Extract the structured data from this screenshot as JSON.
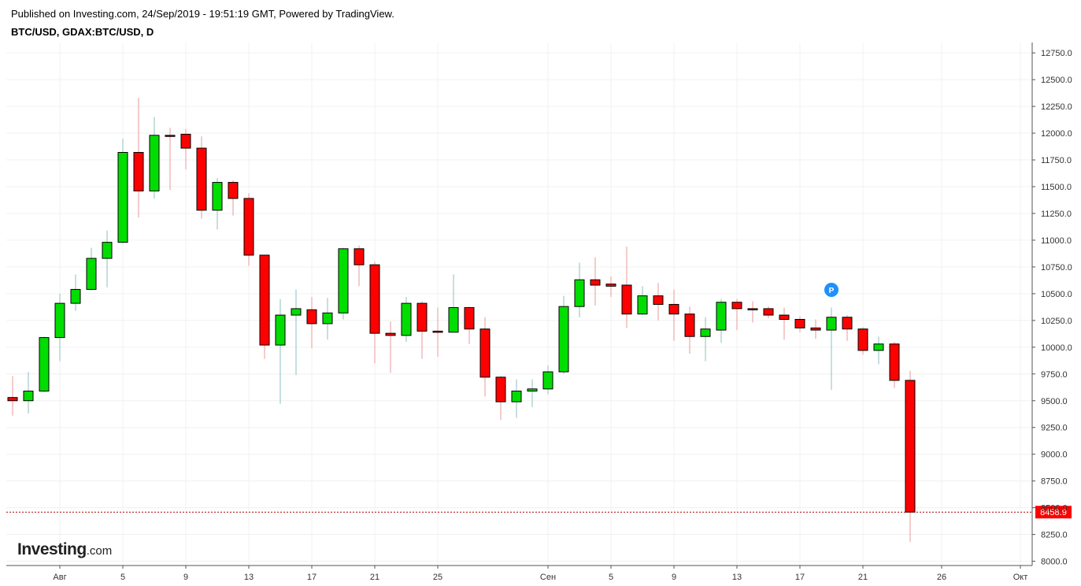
{
  "header": {
    "published": "Published on Investing.com, 24/Sep/2019 - 19:51:19 GMT, Powered by TradingView.",
    "symbol": "BTC/USD, GDAX:BTC/USD, D"
  },
  "logo": {
    "brand": "Investing",
    "suffix": ".com"
  },
  "colors": {
    "up": "#00dd00",
    "down": "#ff0000",
    "grid": "#f0f0f0",
    "last_line": "#b00000"
  },
  "marker": {
    "label": "P",
    "date": "2019-09-19",
    "color": "#1e90ff"
  },
  "chart_data": {
    "type": "candlestick",
    "title": "BTC/USD, GDAX:BTC/USD, D",
    "y_axis": {
      "side": "right",
      "ylim": [
        7960,
        12810
      ],
      "ticks": [
        "8000.0",
        "8250.0",
        "8500.0",
        "8750.0",
        "9000.0",
        "9250.0",
        "9500.0",
        "9750.0",
        "10000.0",
        "10250.0",
        "10500.0",
        "10750.0",
        "11000.0",
        "11250.0",
        "11500.0",
        "11750.0",
        "12000.0",
        "12250.0",
        "12500.0",
        "12750.0"
      ]
    },
    "x_axis": {
      "labels": [
        {
          "date": "2019-08-01",
          "label": "Авг"
        },
        {
          "date": "2019-08-05",
          "label": "5"
        },
        {
          "date": "2019-08-09",
          "label": "9"
        },
        {
          "date": "2019-08-13",
          "label": "13"
        },
        {
          "date": "2019-08-17",
          "label": "17"
        },
        {
          "date": "2019-08-21",
          "label": "21"
        },
        {
          "date": "2019-08-25",
          "label": "25"
        },
        {
          "date": "2019-09-01",
          "label": "Сен"
        },
        {
          "date": "2019-09-05",
          "label": "5"
        },
        {
          "date": "2019-09-09",
          "label": "9"
        },
        {
          "date": "2019-09-13",
          "label": "13"
        },
        {
          "date": "2019-09-17",
          "label": "17"
        },
        {
          "date": "2019-09-21",
          "label": "21"
        },
        {
          "date": "2019-09-26",
          "label": "26"
        },
        {
          "date": "2019-10-01",
          "label": "Окт"
        }
      ]
    },
    "last_price": "8458.9",
    "candles": [
      {
        "d": "2019-07-29",
        "o": 9530,
        "h": 9730,
        "l": 9360,
        "c": 9500
      },
      {
        "d": "2019-07-30",
        "o": 9500,
        "h": 9770,
        "l": 9380,
        "c": 9590
      },
      {
        "d": "2019-07-31",
        "o": 9590,
        "h": 10100,
        "l": 9580,
        "c": 10090
      },
      {
        "d": "2019-08-01",
        "o": 10090,
        "h": 10500,
        "l": 9870,
        "c": 10410
      },
      {
        "d": "2019-08-02",
        "o": 10410,
        "h": 10680,
        "l": 10340,
        "c": 10540
      },
      {
        "d": "2019-08-03",
        "o": 10540,
        "h": 10930,
        "l": 10530,
        "c": 10830
      },
      {
        "d": "2019-08-04",
        "o": 10830,
        "h": 11090,
        "l": 10560,
        "c": 10980
      },
      {
        "d": "2019-08-05",
        "o": 10980,
        "h": 11950,
        "l": 10970,
        "c": 11820
      },
      {
        "d": "2019-08-06",
        "o": 11820,
        "h": 12330,
        "l": 11210,
        "c": 11460
      },
      {
        "d": "2019-08-07",
        "o": 11460,
        "h": 12150,
        "l": 11390,
        "c": 11980
      },
      {
        "d": "2019-08-08",
        "o": 11980,
        "h": 12050,
        "l": 11470,
        "c": 11970
      },
      {
        "d": "2019-08-09",
        "o": 11990,
        "h": 12040,
        "l": 11660,
        "c": 11860
      },
      {
        "d": "2019-08-10",
        "o": 11860,
        "h": 11970,
        "l": 11200,
        "c": 11280
      },
      {
        "d": "2019-08-11",
        "o": 11280,
        "h": 11580,
        "l": 11100,
        "c": 11540
      },
      {
        "d": "2019-08-12",
        "o": 11540,
        "h": 11560,
        "l": 11230,
        "c": 11390
      },
      {
        "d": "2019-08-13",
        "o": 11390,
        "h": 11440,
        "l": 10760,
        "c": 10860
      },
      {
        "d": "2019-08-14",
        "o": 10860,
        "h": 10860,
        "l": 9890,
        "c": 10020
      },
      {
        "d": "2019-08-15",
        "o": 10020,
        "h": 10450,
        "l": 9470,
        "c": 10300
      },
      {
        "d": "2019-08-16",
        "o": 10300,
        "h": 10540,
        "l": 9740,
        "c": 10360
      },
      {
        "d": "2019-08-17",
        "o": 10350,
        "h": 10470,
        "l": 9990,
        "c": 10220
      },
      {
        "d": "2019-08-18",
        "o": 10220,
        "h": 10460,
        "l": 10070,
        "c": 10320
      },
      {
        "d": "2019-08-19",
        "o": 10320,
        "h": 10930,
        "l": 10260,
        "c": 10920
      },
      {
        "d": "2019-08-20",
        "o": 10920,
        "h": 10950,
        "l": 10570,
        "c": 10770
      },
      {
        "d": "2019-08-21",
        "o": 10770,
        "h": 10800,
        "l": 9850,
        "c": 10130
      },
      {
        "d": "2019-08-22",
        "o": 10130,
        "h": 10240,
        "l": 9760,
        "c": 10110
      },
      {
        "d": "2019-08-23",
        "o": 10110,
        "h": 10470,
        "l": 10050,
        "c": 10410
      },
      {
        "d": "2019-08-24",
        "o": 10410,
        "h": 10430,
        "l": 9890,
        "c": 10150
      },
      {
        "d": "2019-08-25",
        "o": 10150,
        "h": 10370,
        "l": 9910,
        "c": 10140
      },
      {
        "d": "2019-08-26",
        "o": 10140,
        "h": 10680,
        "l": 10140,
        "c": 10370
      },
      {
        "d": "2019-08-27",
        "o": 10370,
        "h": 10380,
        "l": 10030,
        "c": 10170
      },
      {
        "d": "2019-08-28",
        "o": 10170,
        "h": 10280,
        "l": 9540,
        "c": 9720
      },
      {
        "d": "2019-08-29",
        "o": 9720,
        "h": 9730,
        "l": 9320,
        "c": 9490
      },
      {
        "d": "2019-08-30",
        "o": 9490,
        "h": 9700,
        "l": 9340,
        "c": 9590
      },
      {
        "d": "2019-08-31",
        "o": 9590,
        "h": 9700,
        "l": 9440,
        "c": 9610
      },
      {
        "d": "2019-09-01",
        "o": 9610,
        "h": 9830,
        "l": 9560,
        "c": 9770
      },
      {
        "d": "2019-09-02",
        "o": 9770,
        "h": 10480,
        "l": 9750,
        "c": 10380
      },
      {
        "d": "2019-09-03",
        "o": 10380,
        "h": 10790,
        "l": 10280,
        "c": 10630
      },
      {
        "d": "2019-09-04",
        "o": 10630,
        "h": 10840,
        "l": 10390,
        "c": 10580
      },
      {
        "d": "2019-09-05",
        "o": 10590,
        "h": 10660,
        "l": 10470,
        "c": 10570
      },
      {
        "d": "2019-09-06",
        "o": 10580,
        "h": 10940,
        "l": 10180,
        "c": 10310
      },
      {
        "d": "2019-09-07",
        "o": 10310,
        "h": 10570,
        "l": 10300,
        "c": 10480
      },
      {
        "d": "2019-09-08",
        "o": 10480,
        "h": 10600,
        "l": 10250,
        "c": 10400
      },
      {
        "d": "2019-09-09",
        "o": 10400,
        "h": 10540,
        "l": 10060,
        "c": 10310
      },
      {
        "d": "2019-09-10",
        "o": 10310,
        "h": 10380,
        "l": 9940,
        "c": 10100
      },
      {
        "d": "2019-09-11",
        "o": 10100,
        "h": 10280,
        "l": 9870,
        "c": 10170
      },
      {
        "d": "2019-09-12",
        "o": 10160,
        "h": 10450,
        "l": 10040,
        "c": 10420
      },
      {
        "d": "2019-09-13",
        "o": 10420,
        "h": 10450,
        "l": 10160,
        "c": 10360
      },
      {
        "d": "2019-09-14",
        "o": 10360,
        "h": 10430,
        "l": 10230,
        "c": 10350
      },
      {
        "d": "2019-09-15",
        "o": 10360,
        "h": 10380,
        "l": 10270,
        "c": 10300
      },
      {
        "d": "2019-09-16",
        "o": 10300,
        "h": 10370,
        "l": 10070,
        "c": 10260
      },
      {
        "d": "2019-09-17",
        "o": 10260,
        "h": 10290,
        "l": 10140,
        "c": 10180
      },
      {
        "d": "2019-09-18",
        "o": 10180,
        "h": 10260,
        "l": 10080,
        "c": 10160
      },
      {
        "d": "2019-09-19",
        "o": 10160,
        "h": 10370,
        "l": 9600,
        "c": 10280
      },
      {
        "d": "2019-09-20",
        "o": 10280,
        "h": 10300,
        "l": 10060,
        "c": 10170
      },
      {
        "d": "2019-09-21",
        "o": 10170,
        "h": 10190,
        "l": 9930,
        "c": 9970
      },
      {
        "d": "2019-09-22",
        "o": 9970,
        "h": 10100,
        "l": 9840,
        "c": 10030
      },
      {
        "d": "2019-09-23",
        "o": 10030,
        "h": 10050,
        "l": 9620,
        "c": 9690
      },
      {
        "d": "2019-09-24",
        "o": 9690,
        "h": 9780,
        "l": 8180,
        "c": 8459
      }
    ]
  }
}
